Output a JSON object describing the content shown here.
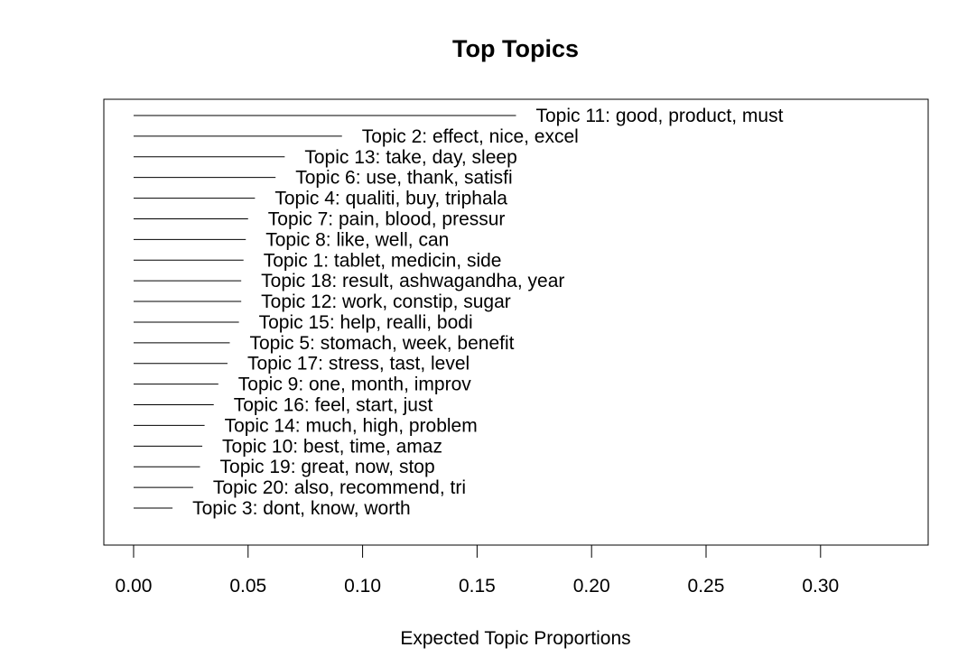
{
  "chart_data": {
    "type": "bar",
    "orientation": "horizontal",
    "title": "Top Topics",
    "xlabel": "Expected Topic Proportions",
    "ylabel": "",
    "xlim": [
      -0.013,
      0.347
    ],
    "x_ticks": [
      0.0,
      0.05,
      0.1,
      0.15,
      0.2,
      0.25,
      0.3
    ],
    "x_tick_labels": [
      "0.00",
      "0.05",
      "0.10",
      "0.15",
      "0.20",
      "0.25",
      "0.30"
    ],
    "grid": false,
    "legend": "none",
    "categories": [
      "Topic 11: good, product, must",
      "Topic 2: effect, nice, excel",
      "Topic 13: take, day, sleep",
      "Topic 6: use, thank, satisfi",
      "Topic 4: qualiti, buy, triphala",
      "Topic 7: pain, blood, pressur",
      "Topic 8: like, well, can",
      "Topic 1: tablet, medicin, side",
      "Topic 18: result, ashwagandha, year",
      "Topic 12: work, constip, sugar",
      "Topic 15: help, realli, bodi",
      "Topic 5: stomach, week, benefit",
      "Topic 17: stress, tast, level",
      "Topic 9: one, month, improv",
      "Topic 16: feel, start, just",
      "Topic 14: much, high, problem",
      "Topic 10: best, time, amaz",
      "Topic 19: great, now, stop",
      "Topic 20: also, recommend, tri",
      "Topic 3: dont, know, worth"
    ],
    "values": [
      0.167,
      0.091,
      0.066,
      0.062,
      0.053,
      0.05,
      0.049,
      0.048,
      0.047,
      0.047,
      0.046,
      0.042,
      0.041,
      0.037,
      0.035,
      0.031,
      0.03,
      0.029,
      0.026,
      0.017
    ]
  }
}
